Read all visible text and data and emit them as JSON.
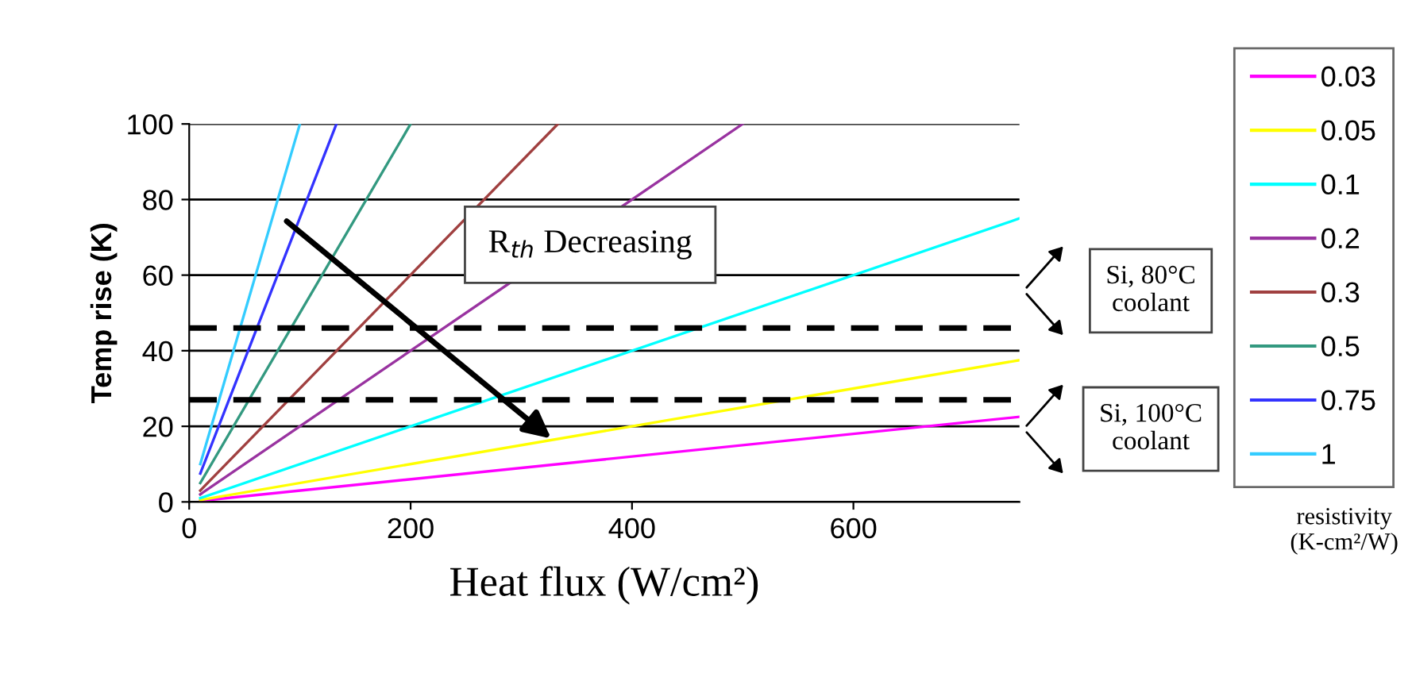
{
  "chart_data": {
    "type": "line",
    "xlabel": "Heat flux (W/cm²)",
    "ylabel": "Temp rise (K)",
    "legend_title": "resistivity\n(K-cm²/W)",
    "xlim": [
      0,
      750
    ],
    "xticks": [
      0,
      200,
      400,
      600
    ],
    "ylim": [
      0,
      100
    ],
    "yticks": [
      0,
      20,
      40,
      60,
      80,
      100
    ],
    "grid": "y",
    "legend": "right",
    "marker": "none",
    "line_style": "solid",
    "series": [
      {
        "name": "0.03",
        "color": "#ff00ff",
        "x": [
          10,
          750
        ],
        "values": [
          0.3,
          22.5
        ]
      },
      {
        "name": "0.05",
        "color": "#ffff00",
        "x": [
          10,
          750
        ],
        "values": [
          0.5,
          37.5
        ]
      },
      {
        "name": "0.1",
        "color": "#00ffff",
        "x": [
          10,
          750
        ],
        "values": [
          1,
          75
        ]
      },
      {
        "name": "0.2",
        "color": "#9933a0",
        "x": [
          10,
          500
        ],
        "values": [
          2,
          100
        ]
      },
      {
        "name": "0.3",
        "color": "#a04040",
        "x": [
          10,
          333
        ],
        "values": [
          3,
          100
        ]
      },
      {
        "name": "0.5",
        "color": "#339980",
        "x": [
          10,
          200
        ],
        "values": [
          5,
          100
        ]
      },
      {
        "name": "0.75",
        "color": "#3333ff",
        "x": [
          10,
          133
        ],
        "values": [
          7.5,
          100
        ]
      },
      {
        "name": "1",
        "color": "#33ccff",
        "x": [
          10,
          100
        ],
        "values": [
          10,
          100
        ]
      }
    ],
    "ref_lines": [
      {
        "axis": "y",
        "value": 46,
        "color": "#000000",
        "line_style": "dashed"
      },
      {
        "axis": "y",
        "value": 27,
        "color": "#000000",
        "line_style": "dashed"
      }
    ],
    "annotations": [
      "R$_{th}$ Decreasing",
      "Si, 80°C\ncoolant",
      "Si, 100°C\ncoolant"
    ]
  }
}
